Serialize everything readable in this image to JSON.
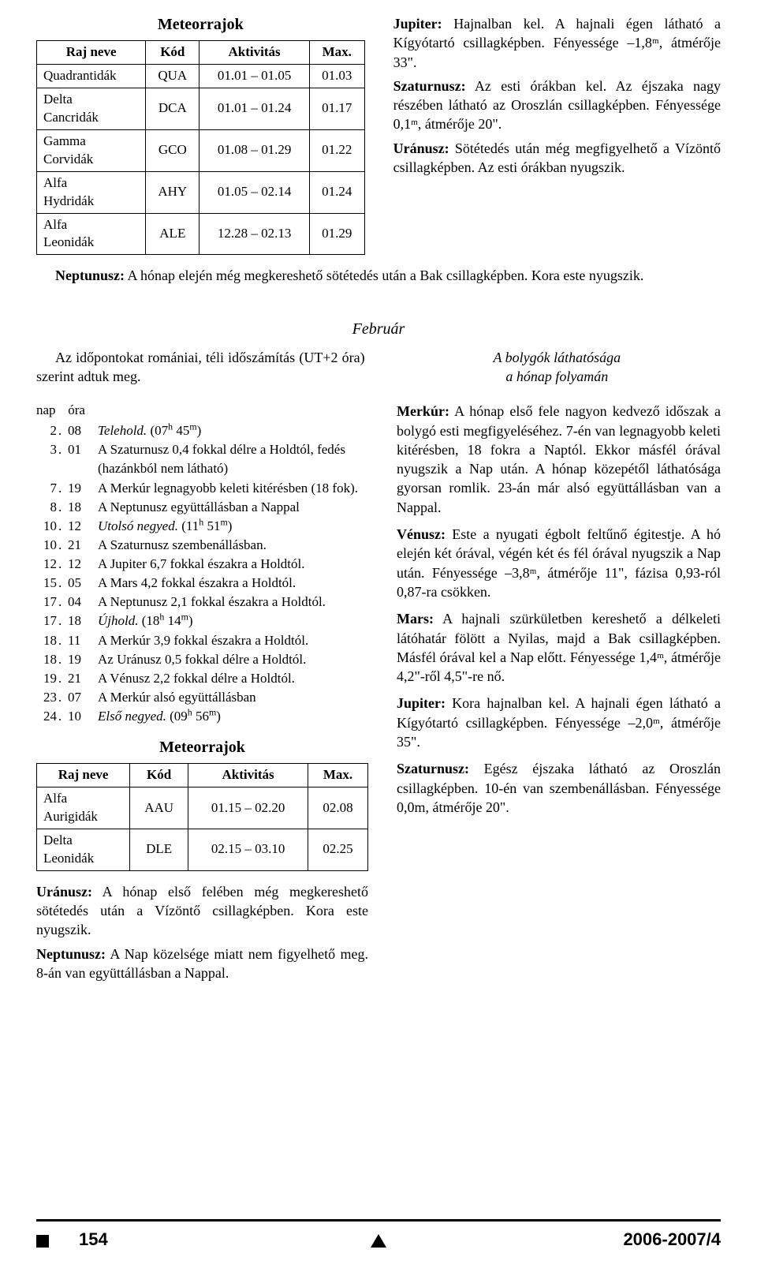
{
  "meteor1": {
    "title": "Meteorrajok",
    "headers": [
      "Raj neve",
      "Kód",
      "Aktivitás",
      "Max."
    ],
    "rows": [
      [
        "Quadrantidák",
        "QUA",
        "01.01 – 01.05",
        "01.03"
      ],
      [
        "Delta Cancridák",
        "DCA",
        "01.01 – 01.24",
        "01.17"
      ],
      [
        "Gamma Corvidák",
        "GCO",
        "01.08 – 01.29",
        "01.22"
      ],
      [
        "Alfa Hydridák",
        "AHY",
        "01.05 – 02.14",
        "01.24"
      ],
      [
        "Alfa Leonidák",
        "ALE",
        "12.28 – 02.13",
        "01.29"
      ]
    ]
  },
  "planets_top": {
    "jupiter_label": "Jupiter:",
    "jupiter_text": " Hajnalban kel. A hajnali égen látható a Kígyótartó csillagképben. Fényessége –1,8ᵐ, átmérője 33\".",
    "saturn_label": "Szaturnusz:",
    "saturn_text": " Az esti órákban kel. Az éjszaka nagy részében látható az Oroszlán csillagképben. Fényessége 0,1ᵐ, átmérője 20\".",
    "uranus_label": "Uránusz:",
    "uranus_text": " Sötétedés után még megfigyelhető a Vízöntő csillagképben. Az esti órákban nyugszik."
  },
  "neptune_top_label": "Neptunusz:",
  "neptune_top_text": " A hónap elején még megkereshető sötétedés után a Bak csillagképben. Kora este nyugszik.",
  "feb_heading": "Február",
  "feb_intro_left": "Az időpontokat romániai, téli időszámítás (UT+2 óra) szerint adtuk meg.",
  "feb_intro_right_l1": "A bolygók láthatósága",
  "feb_intro_right_l2": "a hónap folyamán",
  "events_header_nap": "nap",
  "events_header_ora": "óra",
  "events": [
    {
      "d": "2",
      "h": "08",
      "t": "<i>Telehold.</i> (07<span class=\"sup\">h</span> 45<span class=\"sup\">m</span>)"
    },
    {
      "d": "3",
      "h": "01",
      "t": "A Szaturnusz 0,4 fokkal délre a Holdtól, fedés (hazánkból nem látható)"
    },
    {
      "d": "7",
      "h": "19",
      "t": "A Merkúr legnagyobb keleti kitérésben (18 fok)."
    },
    {
      "d": "8",
      "h": "18",
      "t": "A Neptunusz együttállásban a Nappal"
    },
    {
      "d": "10",
      "h": "12",
      "t": "<i>Utolsó negyed.</i> (11<span class=\"sup\">h</span> 51<span class=\"sup\">m</span>)"
    },
    {
      "d": "10",
      "h": "21",
      "t": "A Szaturnusz szembenállásban."
    },
    {
      "d": "12",
      "h": "12",
      "t": "A Jupiter 6,7 fokkal északra a Holdtól."
    },
    {
      "d": "15",
      "h": "05",
      "t": "A Mars 4,2 fokkal északra a Holdtól."
    },
    {
      "d": "17",
      "h": "04",
      "t": "A Neptunusz 2,1 fokkal északra a Holdtól."
    },
    {
      "d": "17",
      "h": "18",
      "t": "<i>Újhold.</i> (18<span class=\"sup\">h</span> 14<span class=\"sup\">m</span>)"
    },
    {
      "d": "18",
      "h": "11",
      "t": "A Merkúr 3,9 fokkal északra a Holdtól."
    },
    {
      "d": "18",
      "h": "19",
      "t": "Az Uránusz 0,5 fokkal délre a Holdtól."
    },
    {
      "d": "19",
      "h": "21",
      "t": "A Vénusz 2,2 fokkal délre a Holdtól."
    },
    {
      "d": "23",
      "h": "07",
      "t": "A Merkúr alsó együttállásban"
    },
    {
      "d": "24",
      "h": "10",
      "t": "<i>Első negyed.</i> (09<span class=\"sup\">h</span> 56<span class=\"sup\">m</span>)"
    }
  ],
  "meteor2": {
    "title": "Meteorrajok",
    "headers": [
      "Raj neve",
      "Kód",
      "Aktivitás",
      "Max."
    ],
    "rows": [
      [
        "Alfa Aurigidák",
        "AAU",
        "01.15 – 02.20",
        "02.08"
      ],
      [
        "Delta Leonidák",
        "DLE",
        "02.15 – 03.10",
        "02.25"
      ]
    ]
  },
  "uranus_bot_label": "Uránusz:",
  "uranus_bot_text": " A hónap első felében még megkereshető sötétedés után a Vízöntő csillagképben. Kora este nyugszik.",
  "neptune_bot_label": "Neptunusz:",
  "neptune_bot_text": " A Nap közelsége miatt nem figyelhető meg. 8-án van együttállásban a Nappal.",
  "planets_right": {
    "mercury_label": "Merkúr:",
    "mercury_text": " A hónap első fele nagyon kedvező időszak a bolygó esti megfigyeléséhez. 7-én van legnagyobb keleti kitérésben, 18 fokra a Naptól. Ekkor másfél órával nyugszik a Nap után. A hónap közepétől láthatósága gyorsan romlik. 23-án már alsó együttállásban van a Nappal.",
    "venus_label": "Vénusz:",
    "venus_text": " Este a nyugati égbolt feltűnő égitestje. A hó elején két órával, végén két és fél órával nyugszik a Nap után. Fényessége –3,8ᵐ, átmérője 11\", fázisa 0,93-ról 0,87-ra csökken.",
    "mars_label": "Mars:",
    "mars_text": " A hajnali szürkületben kereshető a délkeleti látóhatár fölött a Nyilas, majd a Bak csillagképben. Másfél órával kel a Nap előtt. Fényessége 1,4ᵐ, átmérője 4,2\"-ről 4,5\"-re nő.",
    "jupiter_label": "Jupiter:",
    "jupiter_text": " Kora hajnalban kel. A hajnali égen látható a Kígyótartó csillagképben. Fényessége –2,0ᵐ, átmérője 35\".",
    "saturn_label": "Szaturnusz:",
    "saturn_text": " Egész éjszaka látható az Oroszlán csillagképben. 10-én van szembenállásban. Fényessége 0,0m, átmérője 20\"."
  },
  "footer_page": "154",
  "footer_issue": "2006-2007/4"
}
